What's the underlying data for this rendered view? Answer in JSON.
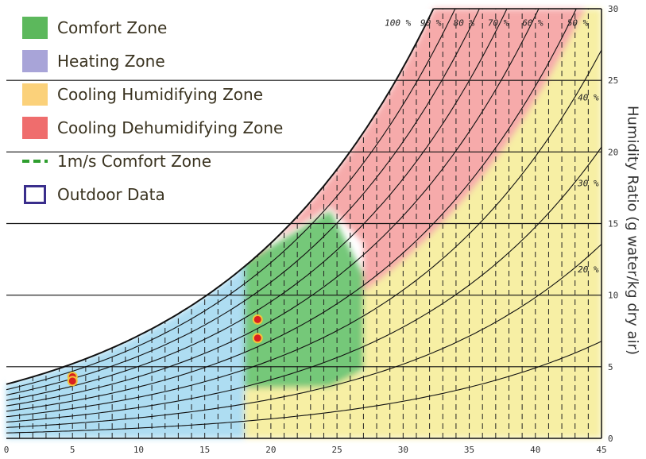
{
  "chart_data": {
    "type": "area",
    "xlim": [
      0,
      45
    ],
    "ylim": [
      0,
      30
    ],
    "x_ticks": [
      "0",
      "5",
      "10",
      "15",
      "20",
      "25",
      "30",
      "35",
      "40",
      "45"
    ],
    "y_ticks": [
      "0",
      "5",
      "10",
      "15",
      "20",
      "25",
      "30"
    ],
    "ylabel": "Humidity Ratio (g water/kg dry air)",
    "xlabel": "",
    "rh_curve_labels": [
      "100 %",
      "90 %",
      "80 %",
      "70 %",
      "60 %",
      "50 %",
      "40 %",
      "30 %",
      "20 %"
    ],
    "rh_curves_percent": [
      100,
      90,
      80,
      70,
      60,
      50,
      40,
      30,
      20,
      10
    ],
    "zones": [
      {
        "name": "Comfort Zone",
        "color": "#75c879"
      },
      {
        "name": "Heating Zone",
        "color": "#aeddf2"
      },
      {
        "name": "Cooling Humidifying Zone",
        "color": "#f7efa4"
      },
      {
        "name": "Cooling Dehumidifying Zone",
        "color": "#f6aaaa"
      }
    ],
    "outdoor_data": [
      {
        "x": 5,
        "y": 4.3
      },
      {
        "x": 5,
        "y": 4.0
      },
      {
        "x": 19,
        "y": 8.3
      },
      {
        "x": 19,
        "y": 7.0
      }
    ],
    "grid": true,
    "legend_position": "top-left"
  },
  "legend": [
    {
      "label": "Comfort Zone",
      "color": "#5cb85c"
    },
    {
      "label": "Heating Zone",
      "color": "#a8a4d8"
    },
    {
      "label": "Cooling Humidifying Zone",
      "color": "#fbd17a"
    },
    {
      "label": "Cooling Dehumidifying Zone",
      "color": "#ef6d6d"
    },
    {
      "label": "1m/s Comfort Zone",
      "color": "#2e9e2e"
    },
    {
      "label": "Outdoor Data",
      "color": "#3a2e8c"
    }
  ]
}
